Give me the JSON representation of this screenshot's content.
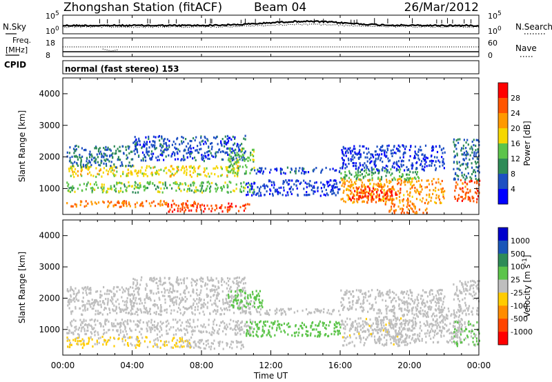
{
  "header": {
    "title": "Zhongshan Station (fitACF)",
    "beam": "Beam 04",
    "date": "26/Mar/2012"
  },
  "nsky_panel": {
    "left_label": "N.Sky",
    "left_ticks": [
      "10^5",
      "10^0"
    ],
    "right_ticks": [
      "10^5",
      "10^0"
    ],
    "right_label": "N.Search"
  },
  "freq_panel": {
    "left_label_1": "Freq.",
    "left_label_2": "[MHz]",
    "left_ticks": [
      "18",
      "8"
    ],
    "right_ticks": [
      "60",
      "0"
    ],
    "right_label": "Nave"
  },
  "cpid_panel": {
    "label": "CPID",
    "text": "normal (fast stereo) 153"
  },
  "chart_data": [
    {
      "type": "heatmap",
      "name": "power",
      "xlabel": "",
      "ylabel": "Slant Range [km]",
      "xlim": [
        0,
        24
      ],
      "ylim": [
        180,
        4500
      ],
      "yticks": [
        1000,
        2000,
        3000,
        4000
      ],
      "colorbar": {
        "label": "Power [dB]",
        "ticks": [
          "4",
          "8",
          "12",
          "16",
          "20",
          "24",
          "28"
        ],
        "colors": [
          "#0000ff",
          "#1d4fc2",
          "#2e8b57",
          "#5cc44a",
          "#f5d700",
          "#ff9900",
          "#ff5500",
          "#ff0000"
        ],
        "range": [
          0,
          32
        ]
      },
      "regions": [
        {
          "t0": 0.2,
          "t1": 7.8,
          "r0": 450,
          "r1": 650,
          "level": 24
        },
        {
          "t0": 6.0,
          "t1": 10.8,
          "r0": 300,
          "r1": 560,
          "level": 28
        },
        {
          "t0": 0.2,
          "t1": 11.0,
          "r0": 900,
          "r1": 1250,
          "level": 14
        },
        {
          "t0": 0.3,
          "t1": 10.5,
          "r0": 1400,
          "r1": 1750,
          "level": 18
        },
        {
          "t0": 0.2,
          "t1": 4.0,
          "r0": 1700,
          "r1": 2400,
          "level": 8
        },
        {
          "t0": 4.0,
          "t1": 10.5,
          "r0": 1900,
          "r1": 2700,
          "level": 6
        },
        {
          "t0": 9.5,
          "t1": 11.0,
          "r0": 1500,
          "r1": 2300,
          "level": 14
        },
        {
          "t0": 11.0,
          "t1": 16.0,
          "r0": 1500,
          "r1": 1700,
          "level": 6
        },
        {
          "t0": 10.5,
          "t1": 16.0,
          "r0": 800,
          "r1": 1300,
          "level": 5
        },
        {
          "t0": 16.0,
          "t1": 22.0,
          "r0": 550,
          "r1": 1350,
          "level": 22
        },
        {
          "t0": 16.5,
          "t1": 19.5,
          "r0": 650,
          "r1": 1100,
          "level": 28
        },
        {
          "t0": 18.5,
          "t1": 21.0,
          "r0": 250,
          "r1": 550,
          "level": 24
        },
        {
          "t0": 16.0,
          "t1": 20.5,
          "r0": 1300,
          "r1": 1650,
          "level": 12
        },
        {
          "t0": 22.5,
          "t1": 24.0,
          "r0": 600,
          "r1": 1300,
          "level": 26
        },
        {
          "t0": 22.5,
          "t1": 24.0,
          "r0": 1300,
          "r1": 2600,
          "level": 8
        },
        {
          "t0": 16.0,
          "t1": 22.0,
          "r0": 1600,
          "r1": 2400,
          "level": 5
        }
      ]
    },
    {
      "type": "heatmap",
      "name": "velocity",
      "xlabel": "Time UT",
      "ylabel": "Slant Range [km]",
      "xlim": [
        0,
        24
      ],
      "ylim": [
        180,
        4500
      ],
      "yticks": [
        1000,
        2000,
        3000,
        4000
      ],
      "xticks": [
        "00:00",
        "04:00",
        "08:00",
        "12:00",
        "16:00",
        "20:00",
        "00:00"
      ],
      "colorbar": {
        "label": "Velocity [m s^-1]",
        "ticks": [
          "1000",
          "500",
          "100",
          "25",
          "-25",
          "-100",
          "-500",
          "-1000"
        ],
        "colors": [
          "#0000cc",
          "#1a56b8",
          "#2e8b57",
          "#5cc44a",
          "#bebebe",
          "#ffcc00",
          "#ff8c00",
          "#ff4500",
          "#ff0000"
        ],
        "range": [
          -1200,
          1200
        ]
      },
      "regions": [
        {
          "t0": 0.2,
          "t1": 7.5,
          "r0": 450,
          "r1": 800,
          "level": -150
        },
        {
          "t0": 7.0,
          "t1": 10.5,
          "r0": 400,
          "r1": 700,
          "level": -60
        },
        {
          "t0": 0.2,
          "t1": 11.0,
          "r0": 850,
          "r1": 1350,
          "level": 0
        },
        {
          "t0": 0.2,
          "t1": 11.0,
          "r0": 1500,
          "r1": 2000,
          "level": 0
        },
        {
          "t0": 0.2,
          "t1": 4.0,
          "r0": 1900,
          "r1": 2400,
          "level": 10
        },
        {
          "t0": 4.0,
          "t1": 10.5,
          "r0": 2000,
          "r1": 2700,
          "level": 5
        },
        {
          "t0": 9.5,
          "t1": 11.5,
          "r0": 1700,
          "r1": 2300,
          "level": 300
        },
        {
          "t0": 10.5,
          "t1": 16.0,
          "r0": 800,
          "r1": 1300,
          "level": 250
        },
        {
          "t0": 11.0,
          "t1": 16.0,
          "r0": 1500,
          "r1": 1700,
          "level": 0
        },
        {
          "t0": 16.0,
          "t1": 20.0,
          "r0": 500,
          "r1": 1400,
          "level": -80
        },
        {
          "t0": 18.0,
          "t1": 23.0,
          "r0": 600,
          "r1": 1700,
          "level": 0
        },
        {
          "t0": 22.5,
          "t1": 24.0,
          "r0": 500,
          "r1": 1300,
          "level": 150
        },
        {
          "t0": 22.5,
          "t1": 24.0,
          "r0": 1500,
          "r1": 2600,
          "level": 0
        },
        {
          "t0": 16.0,
          "t1": 22.0,
          "r0": 1600,
          "r1": 2300,
          "level": 0
        }
      ]
    }
  ]
}
